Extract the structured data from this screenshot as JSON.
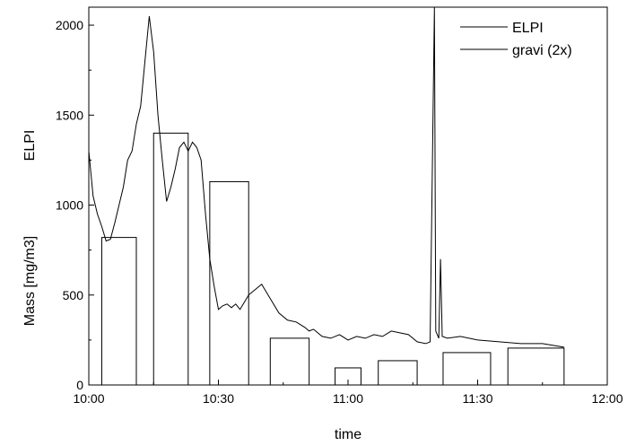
{
  "chart_data": {
    "type": "line",
    "title": "",
    "xlabel": "time",
    "ylabel": "ELPI Mass [mg/m3]",
    "ylabel_parts": [
      "Mass  [mg/m3]",
      "ELPI"
    ],
    "xlim_minutes_after_10": [
      0,
      120
    ],
    "ylim": [
      0,
      2100
    ],
    "x_ticks": [
      "10:00",
      "10:30",
      "11:00",
      "11:30",
      "12:00"
    ],
    "y_ticks": [
      "0",
      "500",
      "1000",
      "1500",
      "2000"
    ],
    "grid": false,
    "legend_position": "top-right",
    "series": [
      {
        "name": "ELPI",
        "color": "#000000",
        "x": [
          "10:00",
          "10:01",
          "10:02",
          "10:03",
          "10:04",
          "10:05",
          "10:06",
          "10:07",
          "10:08",
          "10:09",
          "10:10",
          "10:11",
          "10:12",
          "10:13",
          "10:14",
          "10:15",
          "10:16",
          "10:17",
          "10:18",
          "10:19",
          "10:20",
          "10:21",
          "10:22",
          "10:23",
          "10:24",
          "10:25",
          "10:26",
          "10:27",
          "10:28",
          "10:29",
          "10:30",
          "10:31",
          "10:32",
          "10:33",
          "10:34",
          "10:35",
          "10:36",
          "10:37",
          "10:38",
          "10:40",
          "10:42",
          "10:44",
          "10:46",
          "10:48",
          "10:50",
          "10:51",
          "10:52",
          "10:53",
          "10:54",
          "10:56",
          "10:58",
          "11:00",
          "11:02",
          "11:04",
          "11:06",
          "11:08",
          "11:10",
          "11:12",
          "11:14",
          "11:16",
          "11:18",
          "11:19",
          "11:20",
          "11:20.3",
          "11:21",
          "11:21.4",
          "11:21.8",
          "11:23",
          "11:26",
          "11:30",
          "11:35",
          "11:40",
          "11:45",
          "11:50"
        ],
        "y": [
          1300,
          1050,
          950,
          880,
          800,
          810,
          900,
          1000,
          1100,
          1250,
          1300,
          1450,
          1550,
          1800,
          2050,
          1850,
          1500,
          1250,
          1020,
          1100,
          1200,
          1320,
          1350,
          1300,
          1350,
          1320,
          1250,
          950,
          700,
          550,
          420,
          440,
          450,
          430,
          450,
          420,
          460,
          500,
          520,
          560,
          480,
          400,
          360,
          350,
          320,
          300,
          310,
          290,
          270,
          260,
          280,
          250,
          270,
          260,
          280,
          270,
          300,
          290,
          280,
          240,
          230,
          240,
          2100,
          300,
          260,
          700,
          270,
          260,
          270,
          250,
          240,
          230,
          230,
          210
        ]
      },
      {
        "name": "gravi (2x)",
        "color": "#000000",
        "intervals": [
          {
            "start": "10:03",
            "end": "10:11",
            "value": 820
          },
          {
            "start": "10:15",
            "end": "10:23",
            "value": 1400
          },
          {
            "start": "10:28",
            "end": "10:37",
            "value": 1130
          },
          {
            "start": "10:42",
            "end": "10:51",
            "value": 260
          },
          {
            "start": "10:57",
            "end": "11:03",
            "value": 95
          },
          {
            "start": "11:07",
            "end": "11:16",
            "value": 135
          },
          {
            "start": "11:22",
            "end": "11:33",
            "value": 180
          },
          {
            "start": "11:37",
            "end": "11:50",
            "value": 205
          }
        ]
      }
    ]
  }
}
